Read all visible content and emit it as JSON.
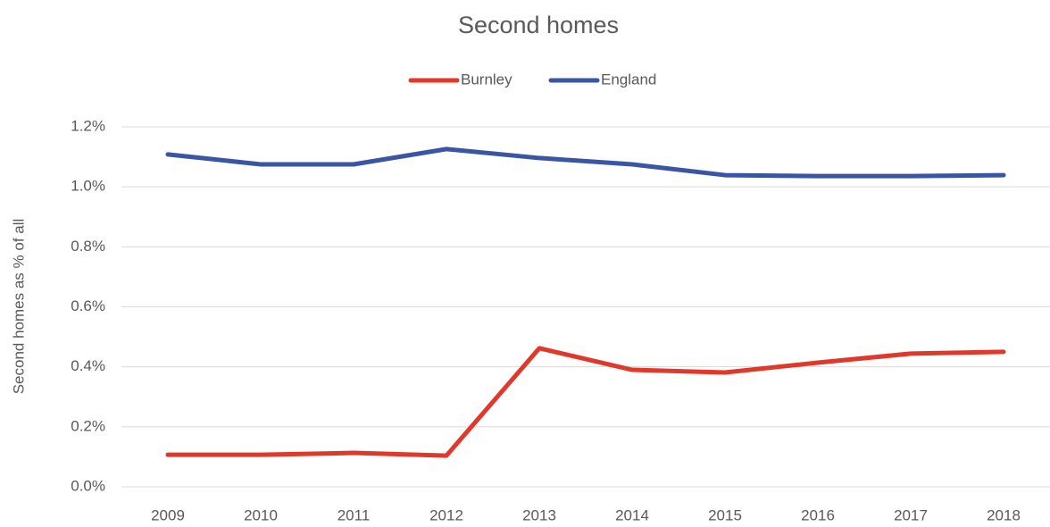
{
  "chart_data": {
    "type": "line",
    "title": "Second homes",
    "y_label": "Second homes as % of all",
    "categories": [
      "2009",
      "2010",
      "2011",
      "2012",
      "2013",
      "2014",
      "2015",
      "2016",
      "2017",
      "2018"
    ],
    "series": [
      {
        "name": "Burnley",
        "color": "#e0392b",
        "values": [
          0.107,
          0.107,
          0.113,
          0.104,
          0.462,
          0.39,
          0.381,
          0.414,
          0.444,
          0.45
        ]
      },
      {
        "name": "England",
        "color": "#3a55a4",
        "values": [
          1.108,
          1.075,
          1.075,
          1.126,
          1.096,
          1.075,
          1.039,
          1.036,
          1.036,
          1.039
        ]
      }
    ],
    "ylim": [
      0,
      1.2
    ],
    "yticks": [
      {
        "value": 0,
        "label": "0.0%"
      },
      {
        "value": 0.2,
        "label": "0.2%"
      },
      {
        "value": 0.4,
        "label": "0.4%"
      },
      {
        "value": 0.6,
        "label": "0.6%"
      },
      {
        "value": 0.8,
        "label": "0.8%"
      },
      {
        "value": 1.0,
        "label": "1.0%"
      },
      {
        "value": 1.2,
        "label": "1.2%"
      }
    ],
    "grid": true,
    "legend": "top"
  }
}
